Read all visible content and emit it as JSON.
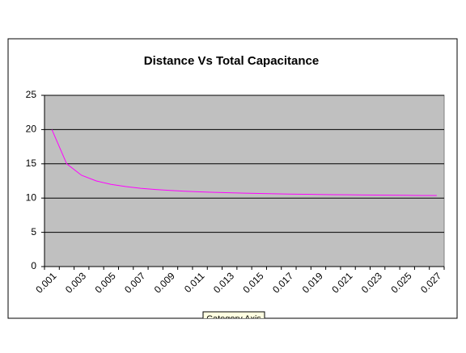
{
  "chart_data": {
    "type": "line",
    "title": "Distance Vs Total Capacitance",
    "categories": [
      "0.001",
      null,
      "0.003",
      null,
      "0.005",
      null,
      "0.007",
      null,
      "0.009",
      null,
      "0.011",
      null,
      "0.013",
      null,
      "0.015",
      null,
      "0.017",
      null,
      "0.019",
      null,
      "0.021",
      null,
      "0.023",
      null,
      "0.025",
      null,
      "0.027"
    ],
    "values": [
      20,
      15,
      13.33,
      12.5,
      12,
      11.67,
      11.43,
      11.25,
      11.11,
      11,
      10.91,
      10.83,
      10.77,
      10.71,
      10.67,
      10.63,
      10.59,
      10.56,
      10.53,
      10.5,
      10.48,
      10.45,
      10.43,
      10.42,
      10.4,
      10.38,
      10.37
    ],
    "color": "#ff00ff",
    "ylim": [
      0,
      25
    ],
    "yticks": [
      0,
      5,
      10,
      15,
      20,
      25
    ],
    "grid": true,
    "tooltip": "Category Axis"
  }
}
